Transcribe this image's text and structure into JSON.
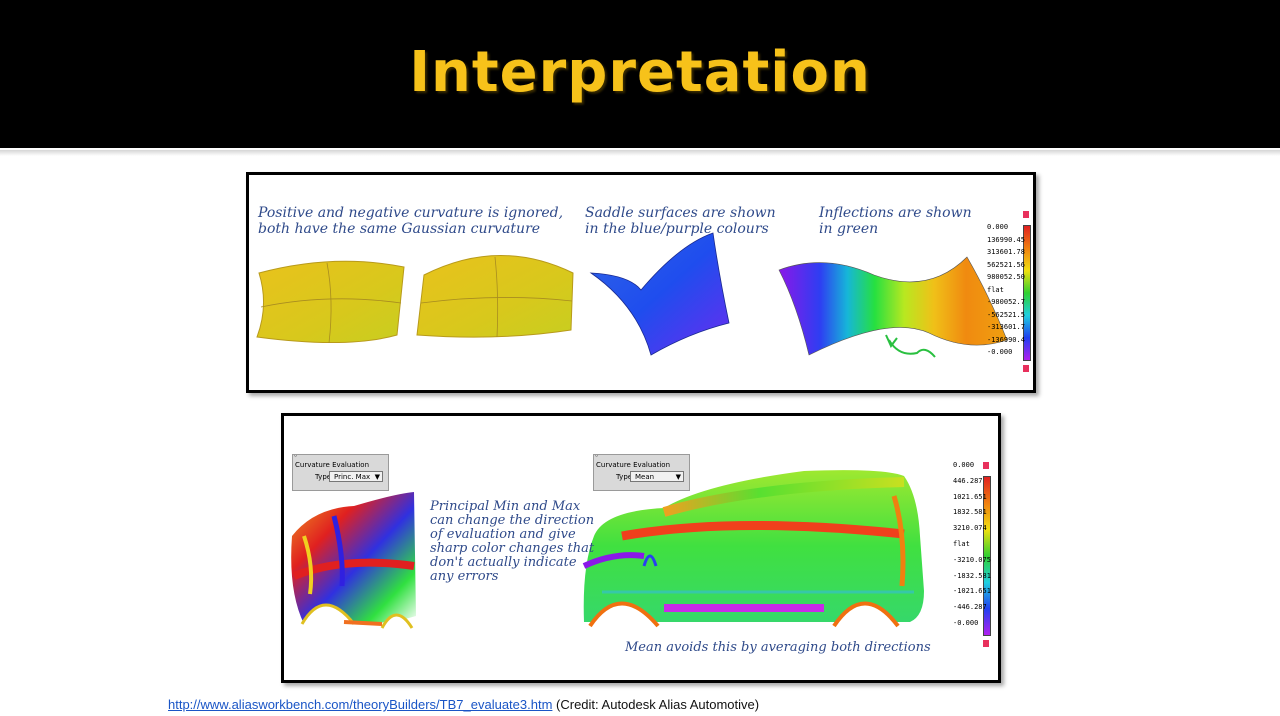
{
  "slide": {
    "title": "Interpretation",
    "source_link": "http://www.aliasworkbench.com/theoryBuilders/TB7_evaluate3.htm",
    "credit": " (Credit: Autodesk Alias Automotive)"
  },
  "panel1": {
    "note1": "Positive and negative curvature is ignored,\nboth have the same Gaussian curvature",
    "note2": "Saddle surfaces are shown\nin the blue/purple colours",
    "note3": "Inflections are shown\nin green",
    "legend": [
      "0.000",
      "136990.45",
      "313601.78",
      "562521.56",
      "980052.50",
      "flat",
      "-980052.7",
      "-562521.5",
      "-313601.7",
      "-136990.4",
      "-0.000"
    ]
  },
  "panel2": {
    "widget_left": {
      "title": "Curvature Evaluation",
      "type_label": "Type",
      "type_value": "Princ. Max"
    },
    "widget_right": {
      "title": "Curvature Evaluation",
      "type_label": "Type",
      "type_value": "Mean"
    },
    "note_left": "Principal Min and Max\ncan change the direction\nof evaluation and give\nsharp color changes that\ndon't actually indicate\nany errors",
    "note_bottom": "Mean avoids this by averaging both directions",
    "legend": [
      "0.000",
      "446.287",
      "1021.651",
      "1832.581",
      "3210.074",
      "flat",
      "-3210.075",
      "-1832.581",
      "-1021.651",
      "-446.287",
      "-0.000"
    ]
  },
  "colors": {
    "title": "#f7c21a",
    "note_text": "#2f4a8a",
    "header_bg": "#000000",
    "link": "#1a55c6"
  }
}
